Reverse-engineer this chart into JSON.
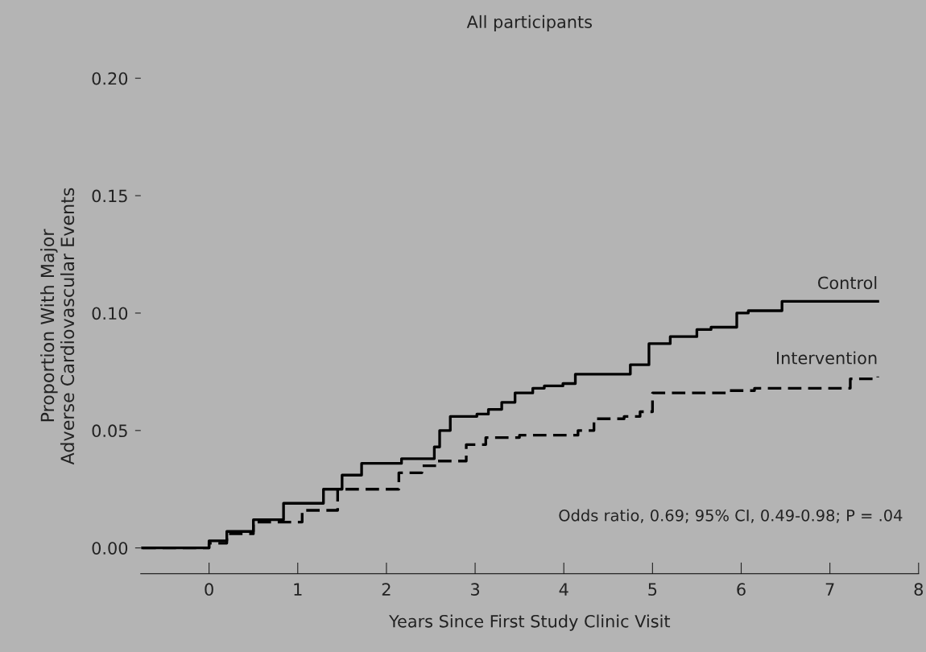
{
  "chart_data": {
    "type": "step",
    "title": "All participants",
    "xlabel": "Years Since First Study Clinic Visit",
    "ylabel": "Proportion With Major\nAdverse Cardiovascular Events",
    "xlim": [
      -0.77,
      8
    ],
    "xticks": [
      0,
      1,
      2,
      3,
      4,
      5,
      6,
      7,
      8
    ],
    "ylim": [
      -0.011,
      0.2
    ],
    "yticks": [
      {
        "value": 0,
        "label": "0.00"
      },
      {
        "value": 0.05,
        "label": "0.05"
      },
      {
        "value": 0.1,
        "label": "0.10"
      },
      {
        "value": 0.15,
        "label": "0.15"
      },
      {
        "value": 0.2,
        "label": "0.20"
      }
    ],
    "series": [
      {
        "name": "Control",
        "color": "#000000",
        "line_style": "solid",
        "x": [
          -0.75,
          0,
          0.2,
          0.5,
          0.84,
          1.29,
          1.5,
          1.72,
          2.17,
          2.54,
          2.6,
          2.72,
          3.02,
          3.15,
          3.3,
          3.45,
          3.65,
          3.78,
          3.99,
          4.13,
          4.75,
          4.96,
          5.2,
          5.5,
          5.66,
          5.95,
          6.08,
          6.46,
          7.54
        ],
        "values": [
          0,
          0.003,
          0.007,
          0.012,
          0.019,
          0.025,
          0.031,
          0.036,
          0.038,
          0.043,
          0.05,
          0.056,
          0.057,
          0.059,
          0.062,
          0.066,
          0.068,
          0.069,
          0.07,
          0.074,
          0.078,
          0.087,
          0.09,
          0.093,
          0.094,
          0.1,
          0.101,
          0.105,
          0.105
        ]
      },
      {
        "name": "Intervention",
        "color": "#000000",
        "line_style": "dashed",
        "x": [
          -0.75,
          0,
          0.2,
          0.5,
          1.05,
          1.45,
          2.14,
          2.4,
          2.56,
          2.9,
          3.12,
          3.5,
          4.16,
          4.34,
          4.68,
          4.86,
          5.0,
          5.84,
          6.15,
          7.23,
          7.54
        ],
        "values": [
          0,
          0.002,
          0.006,
          0.011,
          0.016,
          0.025,
          0.032,
          0.035,
          0.037,
          0.044,
          0.047,
          0.048,
          0.05,
          0.055,
          0.056,
          0.058,
          0.066,
          0.067,
          0.068,
          0.072,
          0.073
        ]
      }
    ],
    "annotations": [
      "Odds ratio, 0.69; 95% CI, 0.49-0.98; P = .04"
    ],
    "marker": "none"
  }
}
